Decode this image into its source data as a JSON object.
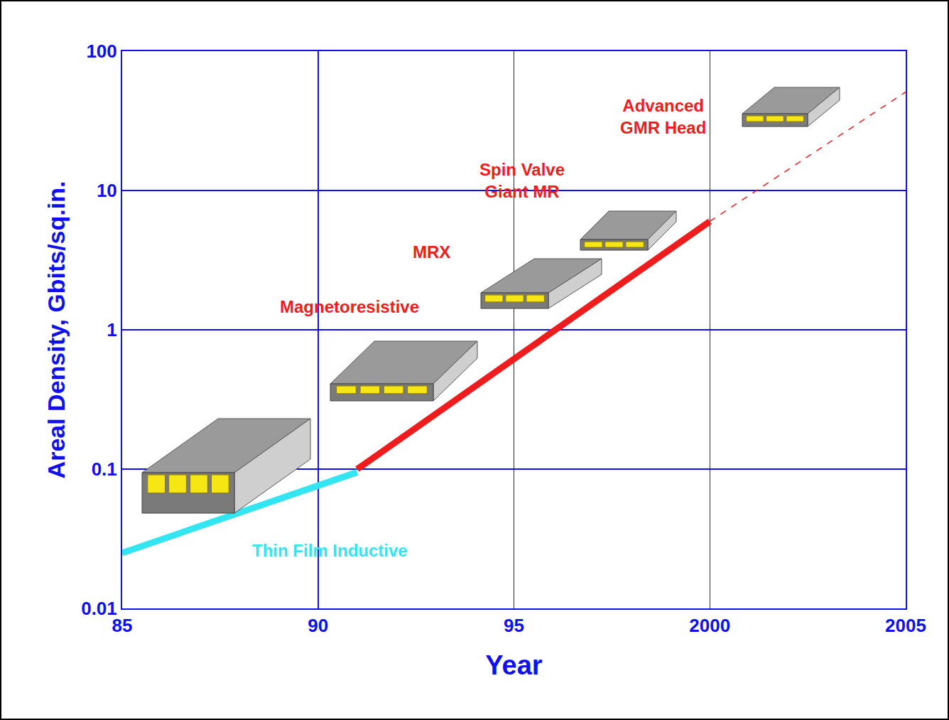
{
  "chart_data": {
    "type": "line",
    "x_label": "Year",
    "y_label": "Areal Density, Gbits/sq.in.",
    "log": "y",
    "grid": true,
    "xlim": [
      1985,
      2005
    ],
    "xticks": [
      {
        "value": 1985,
        "label": "85"
      },
      {
        "value": 1990,
        "label": "90"
      },
      {
        "value": 1995,
        "label": "95"
      },
      2000,
      2005
    ],
    "ylim": [
      0.01,
      100
    ],
    "yticks": [
      0.01,
      0.1,
      1,
      10,
      100
    ],
    "series": [
      {
        "color": "#33e5f0",
        "line_style": "solid",
        "x": [
          1985,
          1991
        ],
        "values": [
          0.025,
          0.095
        ]
      },
      {
        "color": "#ee1c1c",
        "line_style": "solid",
        "x": [
          1991,
          2000
        ],
        "values": [
          0.1,
          6
        ]
      },
      {
        "color": "#ee1c1c",
        "line_style": "dash",
        "x": [
          2000,
          2005
        ],
        "values": [
          6,
          51
        ]
      }
    ],
    "annotations": [
      {
        "text": "Thin Film Inductive",
        "x": 1990.3,
        "y": 0.026,
        "color": "#33e5f0"
      },
      {
        "text": "Magnetoresistive",
        "x": 1990.8,
        "y": 1.47,
        "color": "#ee1c1c"
      },
      {
        "text": "MRX",
        "x": 1992.9,
        "y": 3.6,
        "color": "#ee1c1c"
      },
      {
        "text": "Spin Valve\nGiant MR",
        "x": 1995.2,
        "y": 11.8,
        "color": "#ee1c1c"
      },
      {
        "text": "Advanced\nGMR Head",
        "x": 1998.8,
        "y": 34,
        "color": "#ee1c1c"
      }
    ]
  }
}
